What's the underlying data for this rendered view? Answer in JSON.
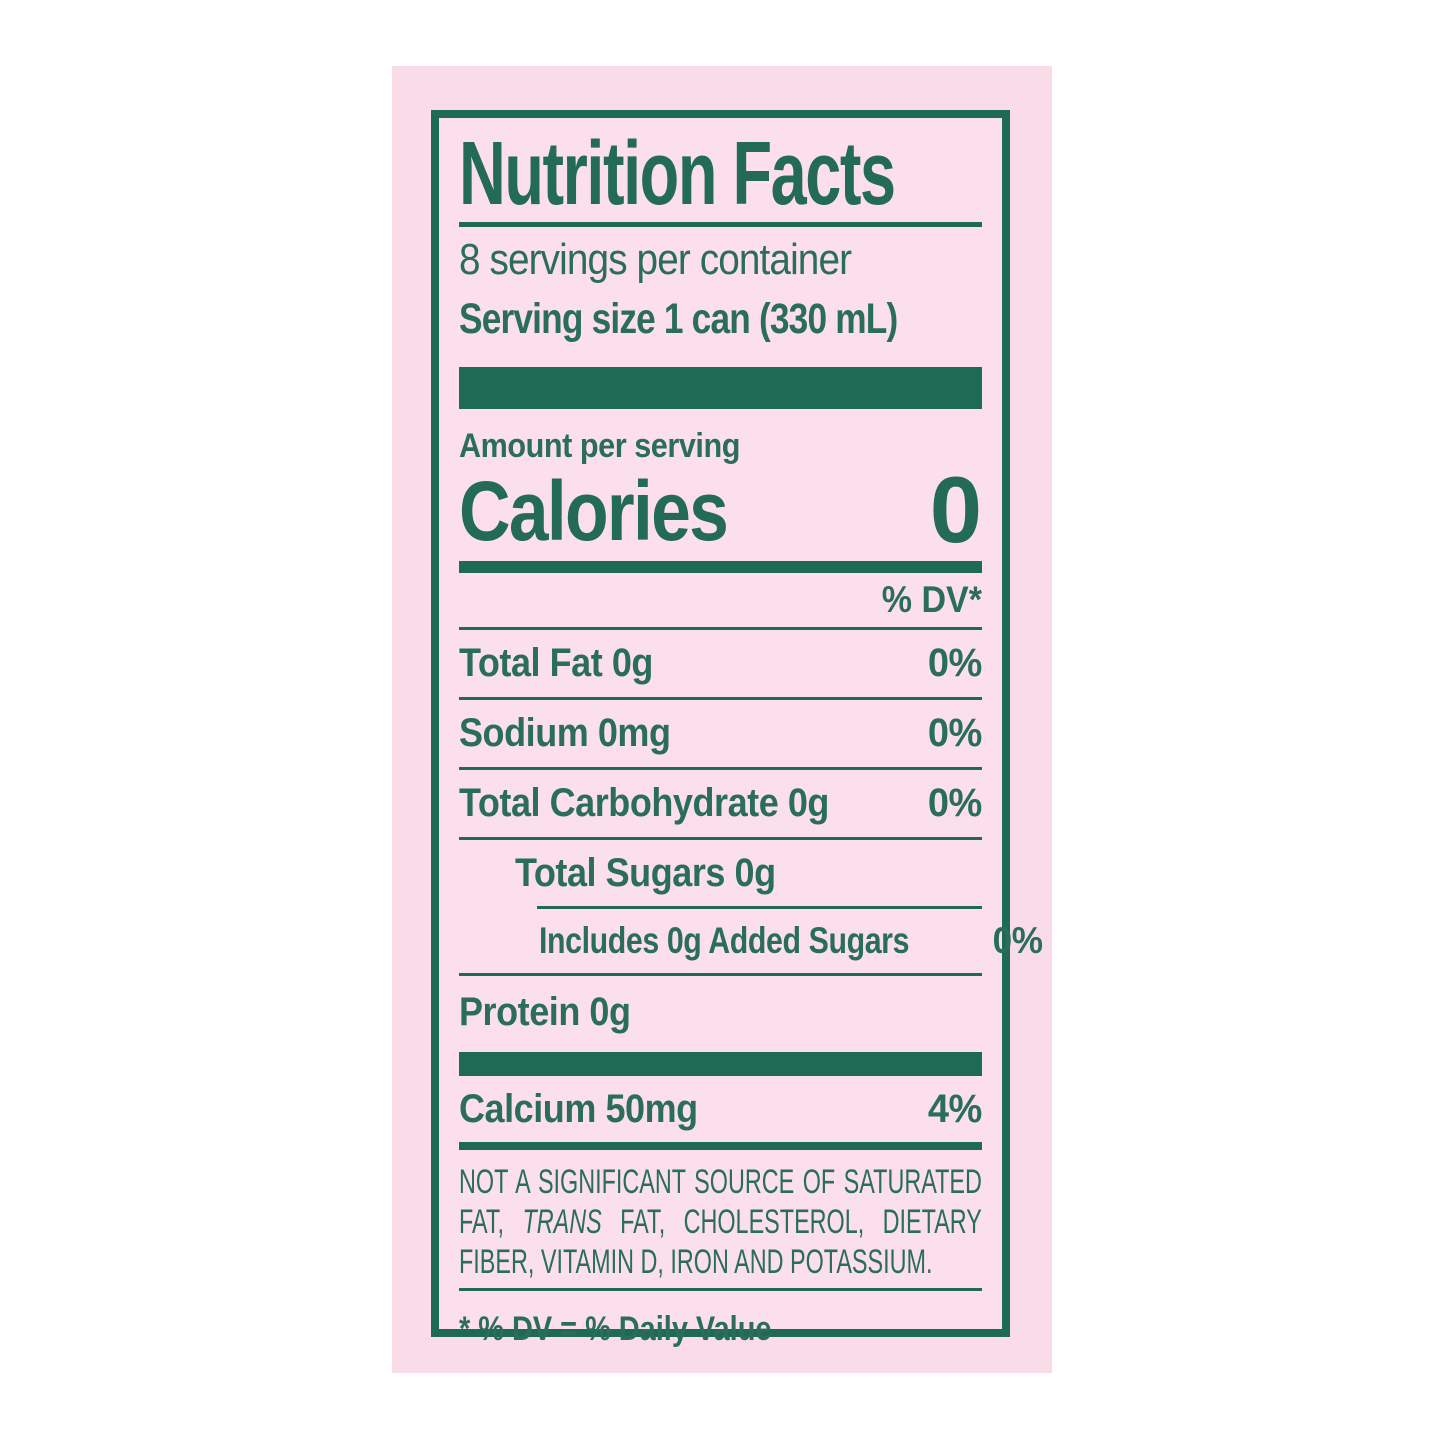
{
  "colors": {
    "page_background": "#ffffff",
    "label_pink": "#fadce9",
    "panel_pink": "#fbdfea",
    "green": "#1e6a52",
    "text_green": "#2a6e5a"
  },
  "label": {
    "title": "Nutrition Facts",
    "servings_per_container": "8 servings per container",
    "serving_size": "Serving size 1 can (330 mL)",
    "amount_per_serving": "Amount per serving",
    "calories_label": "Calories",
    "calories_value": "0",
    "dv_header": "% DV*",
    "rows": [
      {
        "name": "Total Fat 0g",
        "dv": "0%"
      },
      {
        "name": "Sodium 0mg",
        "dv": "0%"
      },
      {
        "name": "Total Carbohydrate 0g",
        "dv": "0%"
      },
      {
        "name": "Total Sugars 0g",
        "dv": ""
      },
      {
        "name": "Includes 0g Added Sugars",
        "dv": "0%"
      },
      {
        "name": "Protein 0g",
        "dv": ""
      }
    ],
    "minerals": [
      {
        "name": "Calcium 50mg",
        "dv": "4%"
      }
    ],
    "footnote": {
      "part1": "NOT A SIGNIFICANT SOURCE OF SATURATED FAT, ",
      "italic": "TRANS",
      "part2": " FAT, CHOLESTEROL, DIETARY FIBER, VITAMIN D, IRON AND POTASSIUM."
    },
    "dv_note": "* % DV = % Daily Value"
  }
}
